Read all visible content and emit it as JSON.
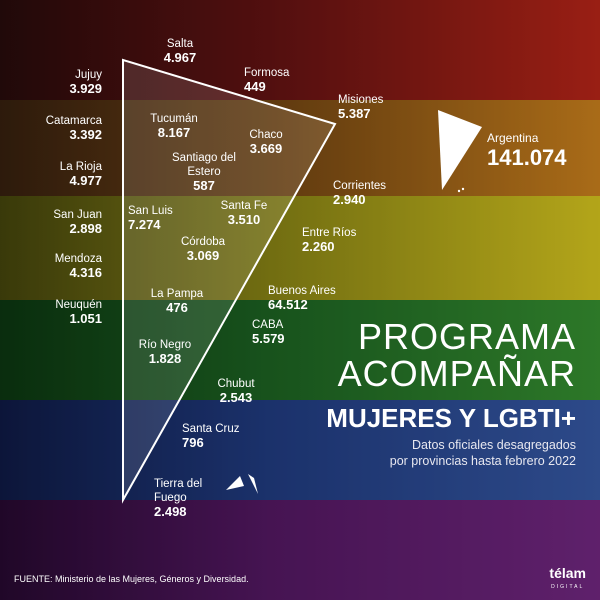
{
  "country": {
    "name": "Argentina",
    "value": "141.074"
  },
  "provinces": [
    {
      "name": "Salta",
      "value": "4.967"
    },
    {
      "name": "Jujuy",
      "value": "3.929"
    },
    {
      "name": "Formosa",
      "value": "449"
    },
    {
      "name": "Misiones",
      "value": "5.387"
    },
    {
      "name": "Catamarca",
      "value": "3.392"
    },
    {
      "name": "Tucumán",
      "value": "8.167"
    },
    {
      "name": "Chaco",
      "value": "3.669"
    },
    {
      "name": "La Rioja",
      "value": "4.977"
    },
    {
      "name": "Santiago del Estero",
      "value": "587"
    },
    {
      "name": "Corrientes",
      "value": "2.940"
    },
    {
      "name": "San Juan",
      "value": "2.898"
    },
    {
      "name": "San Luis",
      "value": "7.274"
    },
    {
      "name": "Santa Fe",
      "value": "3.510"
    },
    {
      "name": "Entre Ríos",
      "value": "2.260"
    },
    {
      "name": "Mendoza",
      "value": "4.316"
    },
    {
      "name": "Córdoba",
      "value": "3.069"
    },
    {
      "name": "Neuquén",
      "value": "1.051"
    },
    {
      "name": "La Pampa",
      "value": "476"
    },
    {
      "name": "Buenos Aires",
      "value": "64.512"
    },
    {
      "name": "CABA",
      "value": "5.579"
    },
    {
      "name": "Río Negro",
      "value": "1.828"
    },
    {
      "name": "Chubut",
      "value": "2.543"
    },
    {
      "name": "Santa Cruz",
      "value": "796"
    },
    {
      "name": "Tierra del Fuego",
      "value": "2.498"
    }
  ],
  "title": {
    "line1": "PROGRAMA",
    "line2": "ACOMPAÑAR",
    "line3": "MUJERES Y LGBTI+"
  },
  "subtitle": {
    "line1": "Datos oficiales desagregados",
    "line2": "por provincias hasta febrero 2022"
  },
  "source": "FUENTE: Ministerio de las Mujeres, Géneros y Diversidad.",
  "logo": {
    "name": "télam",
    "tag": "DIGITAL"
  },
  "colors": {
    "red": "#c5281a",
    "orange": "#d98a1f",
    "yellow": "#e6d421",
    "green": "#3a9a34",
    "blue": "#3a5fb0",
    "purple": "#7a2a8a"
  }
}
